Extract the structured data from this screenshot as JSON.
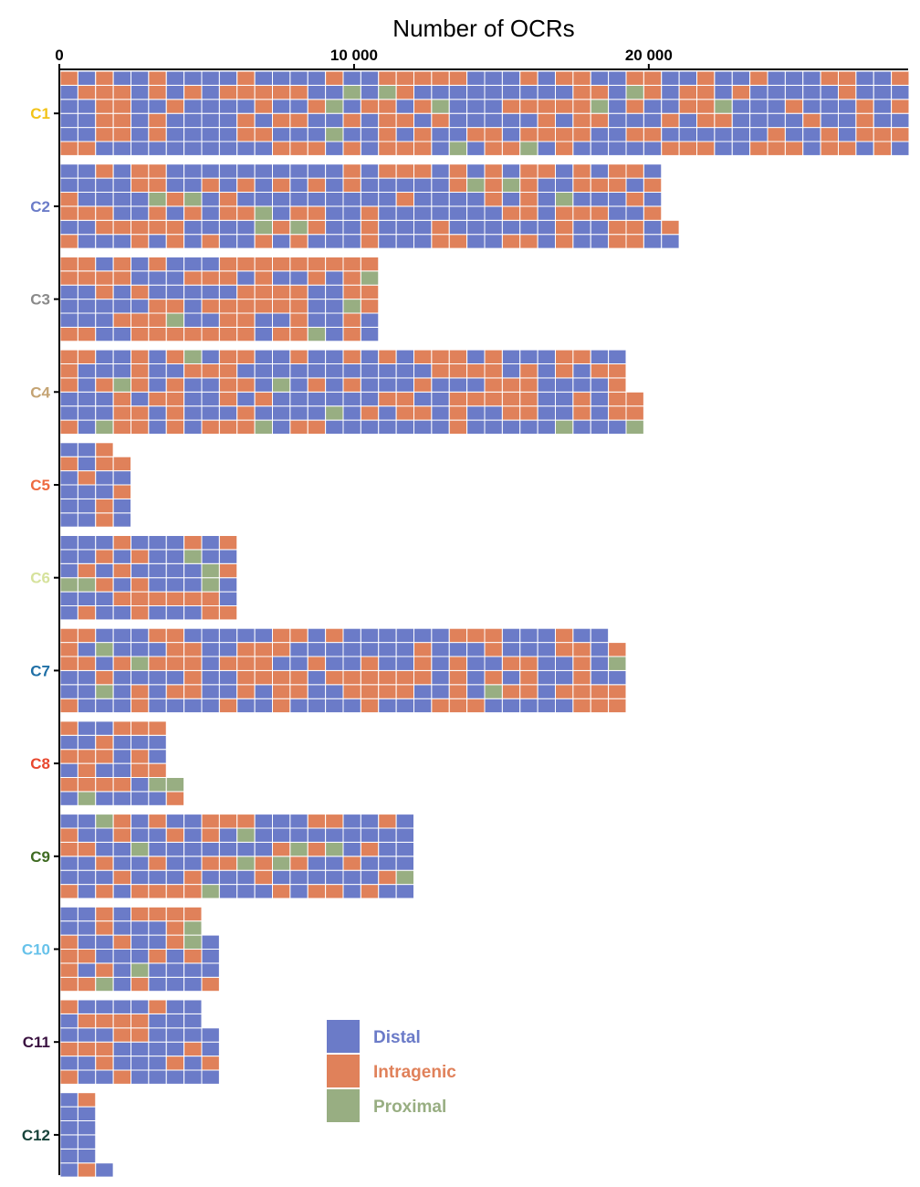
{
  "chart_data": {
    "type": "waffle-bar",
    "title": "",
    "xlabel": "Number of OCRs",
    "ylabel": "",
    "xlim": [
      0,
      28800
    ],
    "xticks": [
      0,
      10000,
      20000
    ],
    "xtick_labels": [
      "0",
      "10 000",
      "20 000"
    ],
    "unit_per_cell": 100,
    "categories": [
      "C1",
      "C2",
      "C3",
      "C4",
      "C5",
      "C6",
      "C7",
      "C8",
      "C9",
      "C10",
      "C11",
      "C12"
    ],
    "category_colors": [
      "#F2C318",
      "#6B7CC8",
      "#8A8A8A",
      "#C4A373",
      "#EE6A40",
      "#D6E29C",
      "#1F6FA6",
      "#E8472E",
      "#3F6B22",
      "#67C2EA",
      "#3A1240",
      "#17433A"
    ],
    "series": [
      {
        "name": "Distal",
        "color": "#6B7BC8",
        "values": [
          16200,
          12000,
          4500,
          10800,
          1500,
          3500,
          10400,
          1800,
          7300,
          2800,
          3500,
          1100
        ]
      },
      {
        "name": "Intragenic",
        "color": "#E0815A",
        "values": [
          11600,
          7800,
          5900,
          7900,
          800,
          2000,
          8200,
          1700,
          3800,
          2000,
          1700,
          200
        ]
      },
      {
        "name": "Proximal",
        "color": "#98AE82",
        "values": [
          1000,
          800,
          400,
          800,
          0,
          500,
          500,
          300,
          900,
          400,
          0,
          0
        ]
      }
    ],
    "legend": {
      "position": "bottom-center",
      "items": [
        "Distal",
        "Intragenic",
        "Proximal"
      ]
    }
  }
}
